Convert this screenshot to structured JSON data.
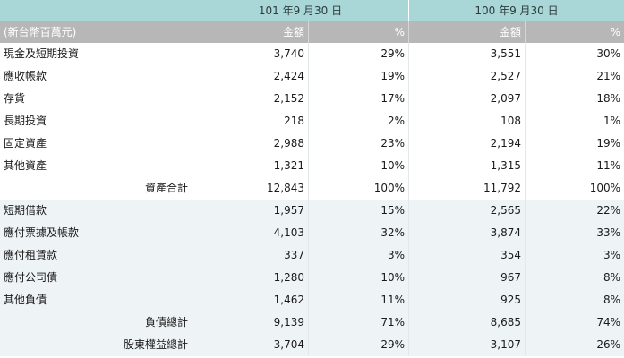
{
  "header": {
    "period_current": "101 年9 月30 日",
    "period_prior": "100 年9 月30 日",
    "unit_label": "(新台幣百萬元)",
    "amount_label": "金額",
    "percent_label": "%"
  },
  "rows": [
    {
      "label": "現金及短期投資",
      "cur_amt": "3,740",
      "cur_pct": "29%",
      "pri_amt": "3,551",
      "pri_pct": "30%"
    },
    {
      "label": "應收帳款",
      "cur_amt": "2,424",
      "cur_pct": "19%",
      "pri_amt": "2,527",
      "pri_pct": "21%"
    },
    {
      "label": "存貨",
      "cur_amt": "2,152",
      "cur_pct": "17%",
      "pri_amt": "2,097",
      "pri_pct": "18%"
    },
    {
      "label": "長期投資",
      "cur_amt": "218",
      "cur_pct": "2%",
      "pri_amt": "108",
      "pri_pct": "1%"
    },
    {
      "label": "固定資產",
      "cur_amt": "2,988",
      "cur_pct": "23%",
      "pri_amt": "2,194",
      "pri_pct": "19%"
    },
    {
      "label": "其他資產",
      "cur_amt": "1,321",
      "cur_pct": "10%",
      "pri_amt": "1,315",
      "pri_pct": "11%"
    },
    {
      "label": "資產合計",
      "cur_amt": "12,843",
      "cur_pct": "100%",
      "pri_amt": "11,792",
      "pri_pct": "100%"
    },
    {
      "label": "短期借款",
      "cur_amt": "1,957",
      "cur_pct": "15%",
      "pri_amt": "2,565",
      "pri_pct": "22%"
    },
    {
      "label": "應付票據及帳款",
      "cur_amt": "4,103",
      "cur_pct": "32%",
      "pri_amt": "3,874",
      "pri_pct": "33%"
    },
    {
      "label": "應付租賃款",
      "cur_amt": "337",
      "cur_pct": "3%",
      "pri_amt": "354",
      "pri_pct": "3%"
    },
    {
      "label": "應付公司債",
      "cur_amt": "1,280",
      "cur_pct": "10%",
      "pri_amt": "967",
      "pri_pct": "8%"
    },
    {
      "label": "其他負債",
      "cur_amt": "1,462",
      "cur_pct": "11%",
      "pri_amt": "925",
      "pri_pct": "8%"
    },
    {
      "label": "負債總計",
      "cur_amt": "9,139",
      "cur_pct": "71%",
      "pri_amt": "8,685",
      "pri_pct": "74%"
    },
    {
      "label": "股東權益總計",
      "cur_amt": "3,704",
      "cur_pct": "29%",
      "pri_amt": "3,107",
      "pri_pct": "26%"
    }
  ],
  "styles": {
    "header_color": "#a9d6d6",
    "subheader_color": "#b7b7b7",
    "liability_section_shade": "#eef3f6"
  }
}
